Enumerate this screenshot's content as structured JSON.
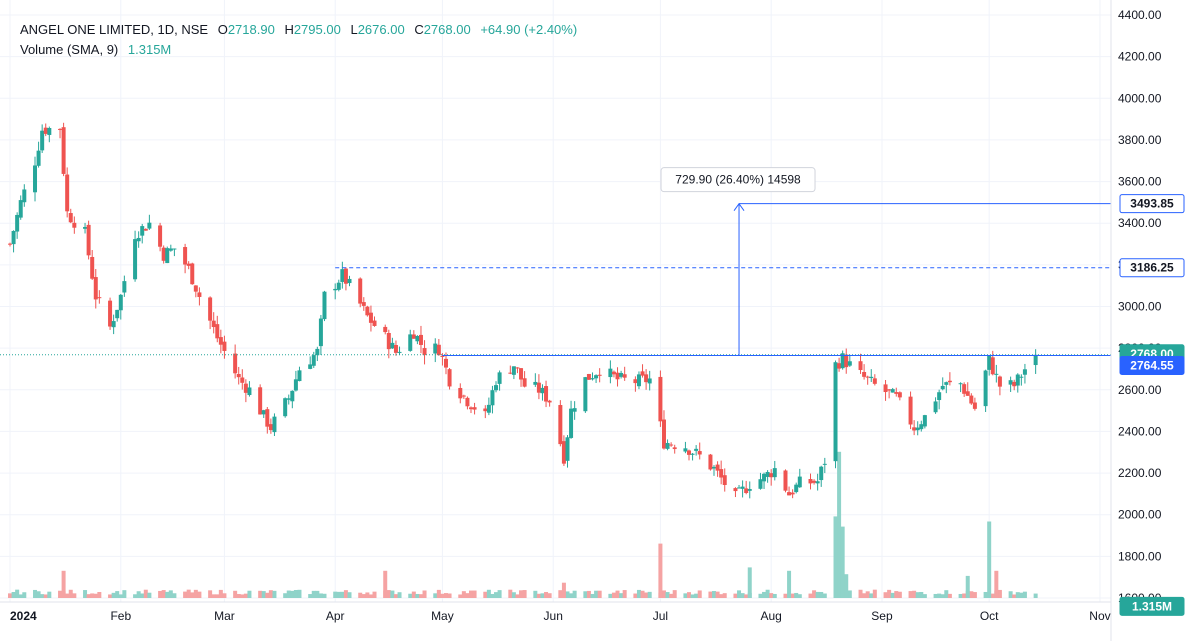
{
  "header": {
    "symbol": "ANGEL ONE LIMITED, 1D, NSE",
    "open_label": "O",
    "open": "2718.90",
    "high_label": "H",
    "high": "2795.00",
    "low_label": "L",
    "low": "2676.00",
    "close_label": "C",
    "close": "2768.00",
    "change": "+64.90 (+2.40%)",
    "volume_label": "Volume (SMA, 9)",
    "volume_value": "1.315M"
  },
  "colors": {
    "up": "#26a69a",
    "down": "#ef5350",
    "up_volume": "#8fd3c9",
    "down_volume": "#f5a3a3",
    "line_blue": "#2962ff",
    "price_tag_blue": "#2962ff",
    "close_tag": "#26a69a"
  },
  "chart_data": {
    "type": "candlestick",
    "title": "ANGEL ONE LIMITED, 1D, NSE",
    "ylim": [
      1600,
      4400
    ],
    "yticks": [
      "4400.00",
      "4200.00",
      "4000.00",
      "3800.00",
      "3600.00",
      "3400.00",
      "3200.00",
      "3000.00",
      "2800.00",
      "2600.00",
      "2400.00",
      "2200.00",
      "2000.00",
      "1800.00",
      "1600.00"
    ],
    "xlim": [
      "2024-01-01",
      "2024-11-15"
    ],
    "xticks": [
      {
        "date": "2024-01-01",
        "label": "2024"
      },
      {
        "date": "2024-02-01",
        "label": "Feb"
      },
      {
        "date": "2024-03-01",
        "label": "Mar"
      },
      {
        "date": "2024-04-01",
        "label": "Apr"
      },
      {
        "date": "2024-05-01",
        "label": "May"
      },
      {
        "date": "2024-06-01",
        "label": "Jun"
      },
      {
        "date": "2024-07-01",
        "label": "Jul"
      },
      {
        "date": "2024-08-01",
        "label": "Aug"
      },
      {
        "date": "2024-09-01",
        "label": "Sep"
      },
      {
        "date": "2024-10-01",
        "label": "Oct"
      },
      {
        "date": "2024-11-01",
        "label": "Nov"
      }
    ],
    "price_path": [
      [
        "2024-01-01",
        3300
      ],
      [
        "2024-01-04",
        3500
      ],
      [
        "2024-01-08",
        3700
      ],
      [
        "2024-01-10",
        3850
      ],
      [
        "2024-01-15",
        3860
      ],
      [
        "2024-01-17",
        3450
      ],
      [
        "2024-01-22",
        3350
      ],
      [
        "2024-01-25",
        3050
      ],
      [
        "2024-01-29",
        2900
      ],
      [
        "2024-02-01",
        3050
      ],
      [
        "2024-02-05",
        3350
      ],
      [
        "2024-02-09",
        3400
      ],
      [
        "2024-02-13",
        3250
      ],
      [
        "2024-02-16",
        3280
      ],
      [
        "2024-02-20",
        3180
      ],
      [
        "2024-02-23",
        3050
      ],
      [
        "2024-02-28",
        2850
      ],
      [
        "2024-03-05",
        2650
      ],
      [
        "2024-03-08",
        2600
      ],
      [
        "2024-03-12",
        2470
      ],
      [
        "2024-03-14",
        2420
      ],
      [
        "2024-03-19",
        2560
      ],
      [
        "2024-03-22",
        2700
      ],
      [
        "2024-03-27",
        2780
      ],
      [
        "2024-03-29",
        3050
      ],
      [
        "2024-04-03",
        3150
      ],
      [
        "2024-04-05",
        3100
      ],
      [
        "2024-04-10",
        2950
      ],
      [
        "2024-04-15",
        2850
      ],
      [
        "2024-04-18",
        2780
      ],
      [
        "2024-04-23",
        2880
      ],
      [
        "2024-04-26",
        2790
      ],
      [
        "2024-04-30",
        2800
      ],
      [
        "2024-05-03",
        2650
      ],
      [
        "2024-05-08",
        2550
      ],
      [
        "2024-05-13",
        2470
      ],
      [
        "2024-05-16",
        2650
      ],
      [
        "2024-05-21",
        2720
      ],
      [
        "2024-05-24",
        2620
      ],
      [
        "2024-05-28",
        2600
      ],
      [
        "2024-05-31",
        2550
      ],
      [
        "2024-06-04",
        2280
      ],
      [
        "2024-06-06",
        2500
      ],
      [
        "2024-06-10",
        2650
      ],
      [
        "2024-06-14",
        2700
      ],
      [
        "2024-06-19",
        2650
      ],
      [
        "2024-06-24",
        2640
      ],
      [
        "2024-06-28",
        2650
      ],
      [
        "2024-07-02",
        2350
      ],
      [
        "2024-07-08",
        2330
      ],
      [
        "2024-07-12",
        2280
      ],
      [
        "2024-07-16",
        2220
      ],
      [
        "2024-07-22",
        2080
      ],
      [
        "2024-07-26",
        2150
      ],
      [
        "2024-07-30",
        2180
      ],
      [
        "2024-08-02",
        2220
      ],
      [
        "2024-08-06",
        2100
      ],
      [
        "2024-08-09",
        2150
      ],
      [
        "2024-08-14",
        2160
      ],
      [
        "2024-08-16",
        2260
      ],
      [
        "2024-08-19",
        2720
      ],
      [
        "2024-08-21",
        2750
      ],
      [
        "2024-08-26",
        2670
      ],
      [
        "2024-08-30",
        2620
      ],
      [
        "2024-09-05",
        2560
      ],
      [
        "2024-09-10",
        2420
      ],
      [
        "2024-09-13",
        2470
      ],
      [
        "2024-09-18",
        2620
      ],
      [
        "2024-09-23",
        2630
      ],
      [
        "2024-09-27",
        2510
      ],
      [
        "2024-10-01",
        2740
      ],
      [
        "2024-10-04",
        2620
      ],
      [
        "2024-10-08",
        2620
      ],
      [
        "2024-10-11",
        2700
      ],
      [
        "2024-10-14",
        2768
      ]
    ],
    "volume_spikes": [
      {
        "date": "2024-01-16",
        "value": 1.6,
        "dir": "down"
      },
      {
        "date": "2024-04-15",
        "value": 1.6,
        "dir": "down"
      },
      {
        "date": "2024-06-04",
        "value": 0.9,
        "dir": "down"
      },
      {
        "date": "2024-07-01",
        "value": 3.2,
        "dir": "down"
      },
      {
        "date": "2024-07-26",
        "value": 1.8,
        "dir": "up"
      },
      {
        "date": "2024-08-06",
        "value": 1.6,
        "dir": "up"
      },
      {
        "date": "2024-08-19",
        "value": 4.8,
        "dir": "up"
      },
      {
        "date": "2024-08-20",
        "value": 8.6,
        "dir": "up"
      },
      {
        "date": "2024-08-21",
        "value": 4.2,
        "dir": "up"
      },
      {
        "date": "2024-08-22",
        "value": 1.4,
        "dir": "up"
      },
      {
        "date": "2024-10-01",
        "value": 4.5,
        "dir": "up"
      },
      {
        "date": "2024-09-25",
        "value": 1.3,
        "dir": "up"
      },
      {
        "date": "2024-10-03",
        "value": 1.6,
        "dir": "down"
      }
    ],
    "levels": {
      "resistance": 2768.0,
      "dashed_level": 3186.25,
      "target": 3493.85
    },
    "price_tags": [
      {
        "value": "3493.85",
        "price": 3493.85,
        "kind": "outline"
      },
      {
        "value": "3186.25",
        "price": 3186.25,
        "kind": "outline"
      },
      {
        "value": "2768.00",
        "price": 2768.0,
        "kind": "close"
      },
      {
        "value": "2764.55",
        "price": 2764.55,
        "kind": "blue"
      },
      {
        "value": "1.315M",
        "price": 1560,
        "kind": "volume"
      }
    ],
    "measure_label": "729.90 (26.40%) 14598"
  }
}
